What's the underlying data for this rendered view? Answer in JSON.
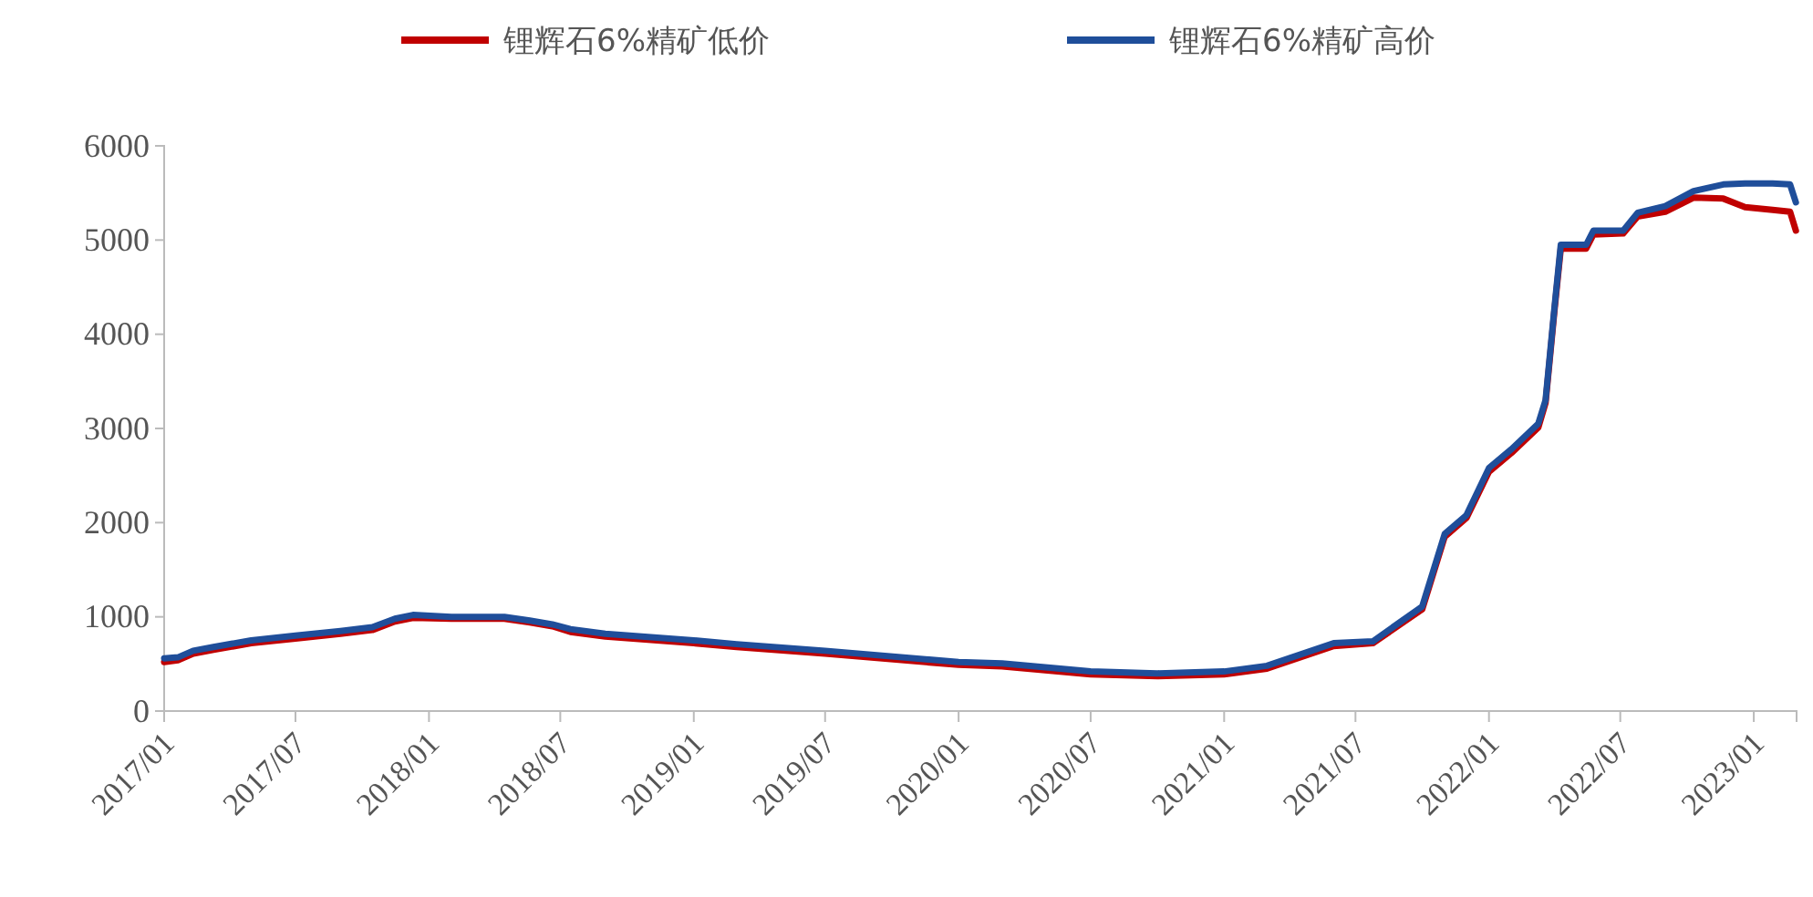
{
  "chart_data": {
    "type": "line",
    "x": [
      "2017-01-01",
      "2017-01-20",
      "2017-02-10",
      "2017-03-10",
      "2017-05-01",
      "2017-07-01",
      "2017-09-01",
      "2017-10-15",
      "2017-11-15",
      "2017-12-10",
      "2018-02-01",
      "2018-04-15",
      "2018-05-20",
      "2018-06-20",
      "2018-07-15",
      "2018-09-01",
      "2019-01-01",
      "2019-03-01",
      "2019-07-01",
      "2020-01-01",
      "2020-03-01",
      "2020-07-01",
      "2020-10-01",
      "2021-01-01",
      "2021-03-01",
      "2021-06-01",
      "2021-07-25",
      "2021-10-01",
      "2021-11-01",
      "2021-12-01",
      "2022-01-01",
      "2022-02-01",
      "2022-03-10",
      "2022-03-20",
      "2022-04-01",
      "2022-04-10",
      "2022-05-15",
      "2022-05-25",
      "2022-07-05",
      "2022-07-25",
      "2022-09-01",
      "2022-10-10",
      "2022-11-20",
      "2022-12-20",
      "2023-01-27",
      "2023-02-20",
      "2023-02-28"
    ],
    "series": [
      {
        "name": "锂辉石6%精矿低价",
        "color": "#c00000",
        "values": [
          520,
          540,
          610,
          650,
          720,
          770,
          820,
          860,
          950,
          990,
          980,
          980,
          940,
          900,
          840,
          790,
          720,
          680,
          610,
          490,
          475,
          390,
          370,
          390,
          450,
          690,
          720,
          1080,
          1850,
          2050,
          2540,
          2740,
          3010,
          3270,
          4230,
          4910,
          4910,
          5060,
          5070,
          5250,
          5300,
          5450,
          5440,
          5350,
          5320,
          5300,
          5100
        ]
      },
      {
        "name": "锂辉石6%精矿高价",
        "color": "#1f4e9a",
        "values": [
          560,
          570,
          640,
          680,
          750,
          800,
          850,
          890,
          980,
          1020,
          1000,
          1000,
          960,
          920,
          870,
          820,
          750,
          710,
          640,
          520,
          505,
          420,
          400,
          420,
          480,
          720,
          740,
          1110,
          1880,
          2080,
          2580,
          2780,
          3050,
          3300,
          4260,
          4950,
          4950,
          5100,
          5100,
          5290,
          5360,
          5520,
          5590,
          5600,
          5600,
          5590,
          5400
        ]
      }
    ],
    "ylim": [
      0,
      6000
    ],
    "yticks": [
      0,
      1000,
      2000,
      3000,
      4000,
      5000,
      6000
    ],
    "xlim": [
      "2017-01-01",
      "2023-03-01"
    ],
    "xticks": [
      {
        "value": "2017-01-01",
        "label": "2017/01"
      },
      {
        "value": "2017-07-01",
        "label": "2017/07"
      },
      {
        "value": "2018-01-01",
        "label": "2018/01"
      },
      {
        "value": "2018-07-01",
        "label": "2018/07"
      },
      {
        "value": "2019-01-01",
        "label": "2019/01"
      },
      {
        "value": "2019-07-01",
        "label": "2019/07"
      },
      {
        "value": "2020-01-01",
        "label": "2020/01"
      },
      {
        "value": "2020-07-01",
        "label": "2020/07"
      },
      {
        "value": "2021-01-01",
        "label": "2021/01"
      },
      {
        "value": "2021-07-01",
        "label": "2021/07"
      },
      {
        "value": "2022-01-01",
        "label": "2022/01"
      },
      {
        "value": "2022-07-01",
        "label": "2022/07"
      },
      {
        "value": "2023-01-01",
        "label": "2023/01"
      }
    ],
    "legend": "top",
    "grid": false,
    "marker": "none",
    "line_style": "solid"
  }
}
